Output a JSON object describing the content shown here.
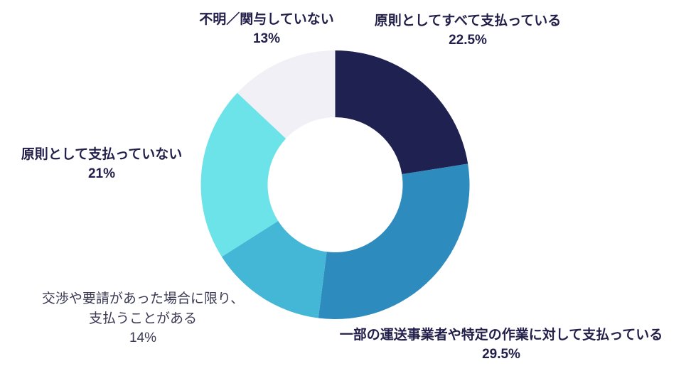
{
  "chart_data": {
    "type": "pie",
    "subtype": "donut",
    "title": "",
    "start_angle_deg": 0,
    "direction": "clockwise",
    "center": [
      471.5,
      260
    ],
    "outer_radius": 189,
    "inner_radius": 95,
    "slices": [
      {
        "label": "原則としてすべて支払っている",
        "value": 22.5,
        "pct_text": "22.5%",
        "color": "#1f2150"
      },
      {
        "label": "一部の運送事業者や特定の作業に対して支払っている",
        "value": 29.5,
        "pct_text": "29.5%",
        "color": "#2e8bbd"
      },
      {
        "label": "交渉や要請があった場合に限り、支払うことがある",
        "label_lines": [
          "交渉や要請があった場合に限り、",
          "支払うことがある"
        ],
        "value": 14,
        "pct_text": "14%",
        "color": "#44b7d6"
      },
      {
        "label": "原則として支払っていない",
        "value": 21,
        "pct_text": "21%",
        "color": "#6ce3e8"
      },
      {
        "label": "不明／関与していない",
        "value": 13,
        "pct_text": "13%",
        "color": "#f1f0f6"
      }
    ]
  },
  "labels": {
    "all_pay": {
      "text": "原則としてすべて支払っている",
      "pct": "22.5%"
    },
    "partial_pay": {
      "text": "一部の運送事業者や特定の作業に対して支払っている",
      "pct": "29.5%"
    },
    "negotiated": {
      "line1": "交渉や要請があった場合に限り、",
      "line2": "支払うことがある",
      "pct": "14%"
    },
    "no_pay": {
      "text": "原則として支払っていない",
      "pct": "21%"
    },
    "unknown": {
      "text": "不明／関与していない",
      "pct": "13%"
    }
  }
}
